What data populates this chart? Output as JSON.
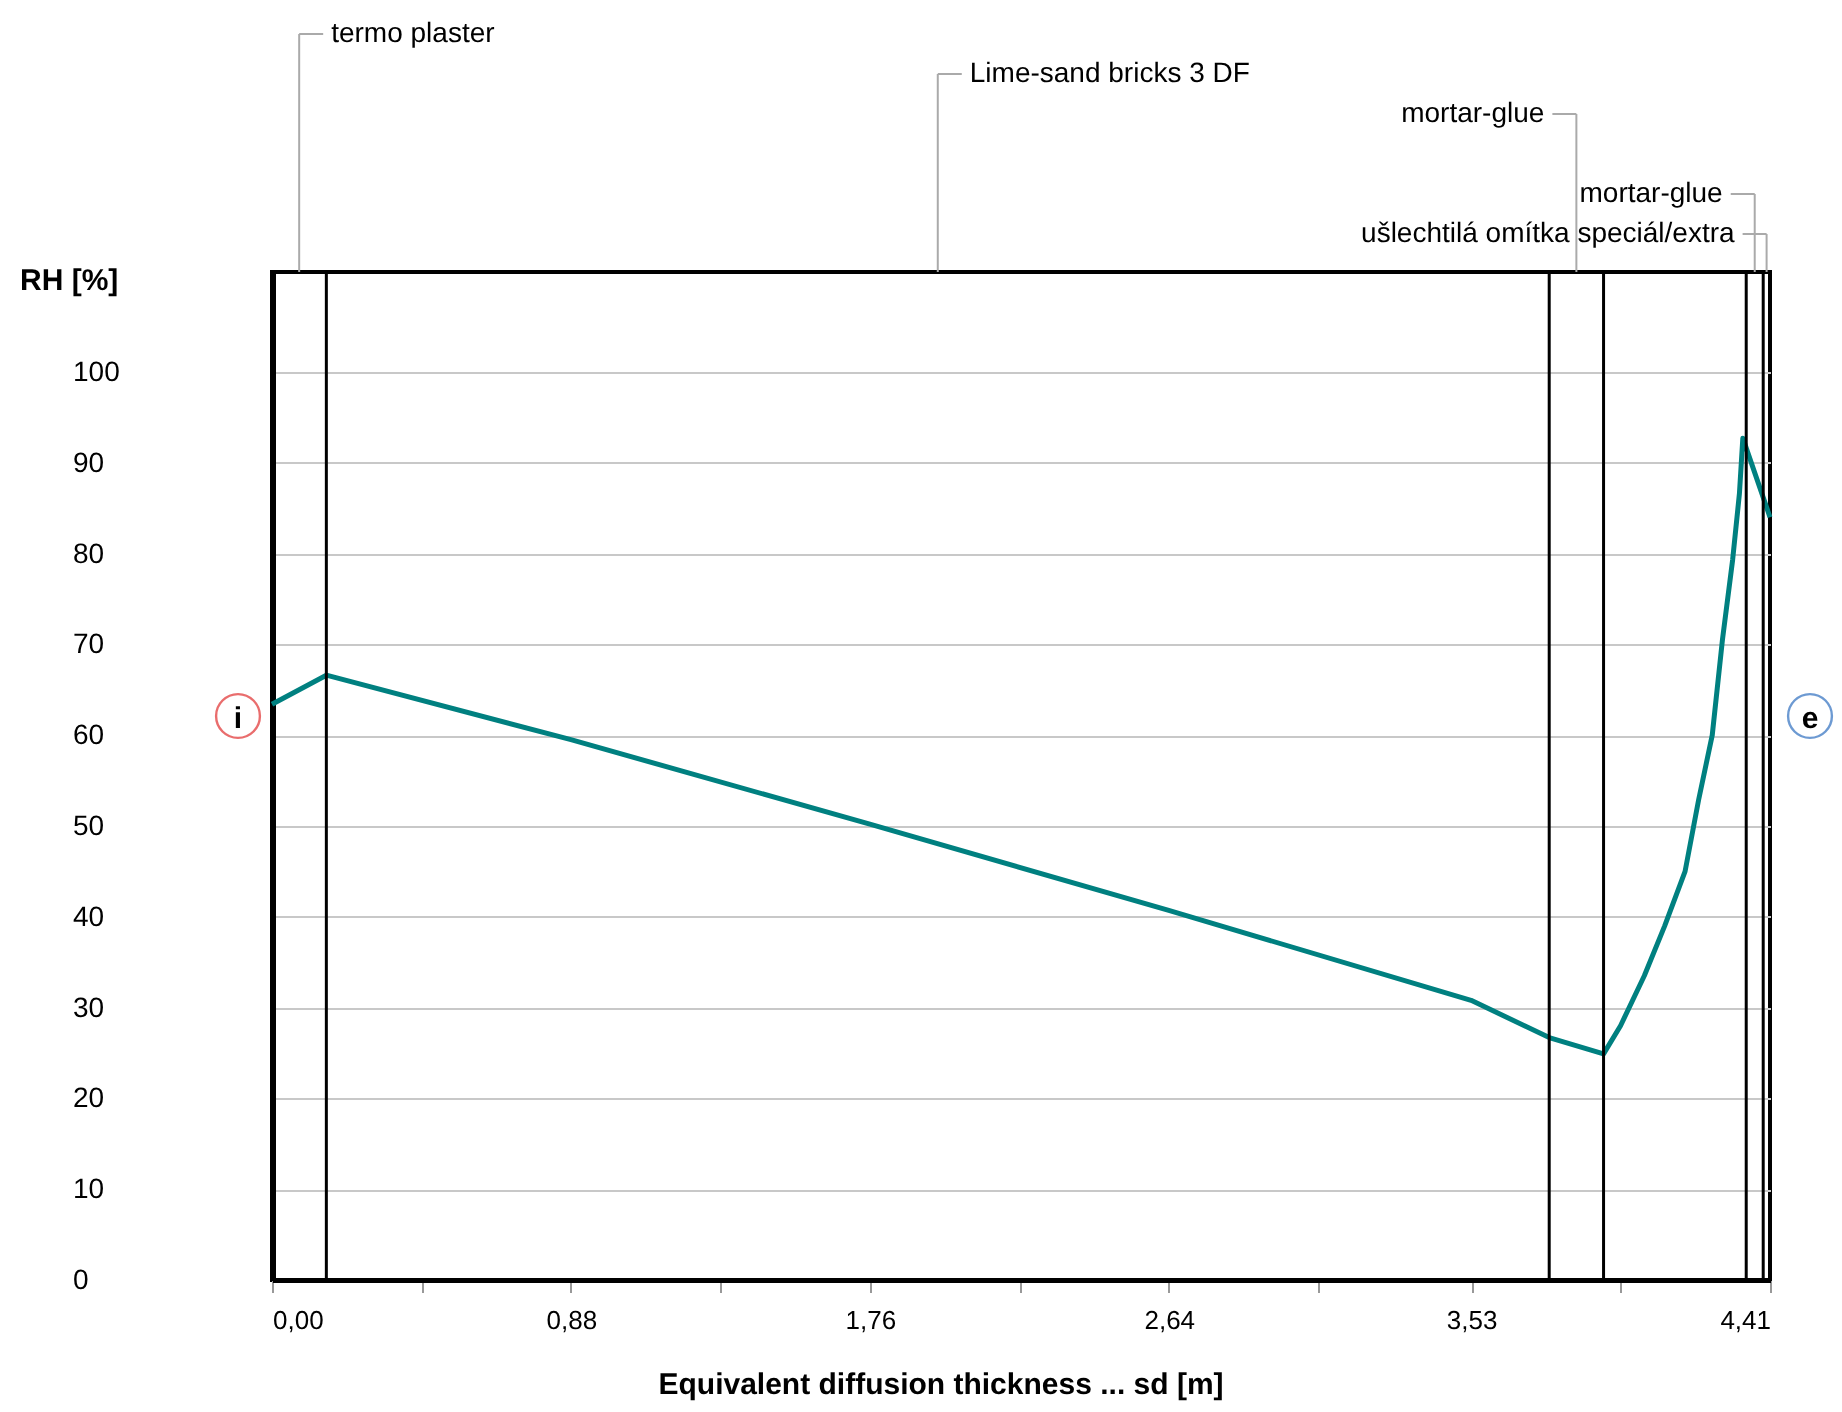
{
  "chart_data": {
    "type": "line",
    "xlabel": "Equivalent diffusion thickness ... sd [m]",
    "ylabel": "RH [%]",
    "x": [
      0,
      0.16,
      0.88,
      1.76,
      2.64,
      3.53,
      3.76,
      3.92,
      3.97,
      4.04,
      4.1,
      4.16,
      4.2,
      4.24,
      4.27,
      4.3,
      4.32,
      4.33,
      4.41
    ],
    "series": [
      {
        "color": "#008080",
        "values": [
          63.4,
          66.6,
          59.5,
          50.2,
          40.7,
          30.8,
          26.7,
          24.9,
          28,
          33.5,
          39,
          45,
          52.9,
          60,
          70.5,
          79.3,
          86.6,
          92.7,
          84
        ]
      }
    ],
    "xlim": [
      0,
      4.41
    ],
    "xticks": [
      {
        "value": 0,
        "label": "0,00"
      },
      {
        "value": 0.44,
        "label": null
      },
      {
        "value": 0.88,
        "label": "0,88"
      },
      {
        "value": 1.32,
        "label": null
      },
      {
        "value": 1.76,
        "label": "1,76"
      },
      {
        "value": 2.2,
        "label": null
      },
      {
        "value": 2.64,
        "label": "2,64"
      },
      {
        "value": 3.08,
        "label": null
      },
      {
        "value": 3.53,
        "label": "3,53"
      },
      {
        "value": 3.97,
        "label": null
      },
      {
        "value": 4.41,
        "label": "4,41"
      }
    ],
    "ylim": [
      0,
      111
    ],
    "yticks": [
      0,
      10,
      20,
      30,
      40,
      50,
      60,
      70,
      80,
      90,
      100
    ],
    "grid": "y",
    "marker": "none",
    "line_style": "solid",
    "ref_lines": [
      {
        "axis": "x",
        "value": 0.16,
        "label": null,
        "color": "#000000"
      },
      {
        "axis": "x",
        "value": 3.76,
        "label": null,
        "color": "#000000"
      },
      {
        "axis": "x",
        "value": 3.92,
        "label": null,
        "color": "#000000"
      },
      {
        "axis": "x",
        "value": 4.34,
        "label": null,
        "color": "#000000"
      },
      {
        "axis": "x",
        "value": 4.39,
        "label": null,
        "color": "#000000"
      }
    ],
    "annotations": [
      "termo plaster",
      "Lime-sand bricks 3 DF",
      "mortar-glue",
      null,
      "mortar-glue",
      "ušlechtilá omítka speciál/extra",
      "i",
      "e"
    ]
  }
}
